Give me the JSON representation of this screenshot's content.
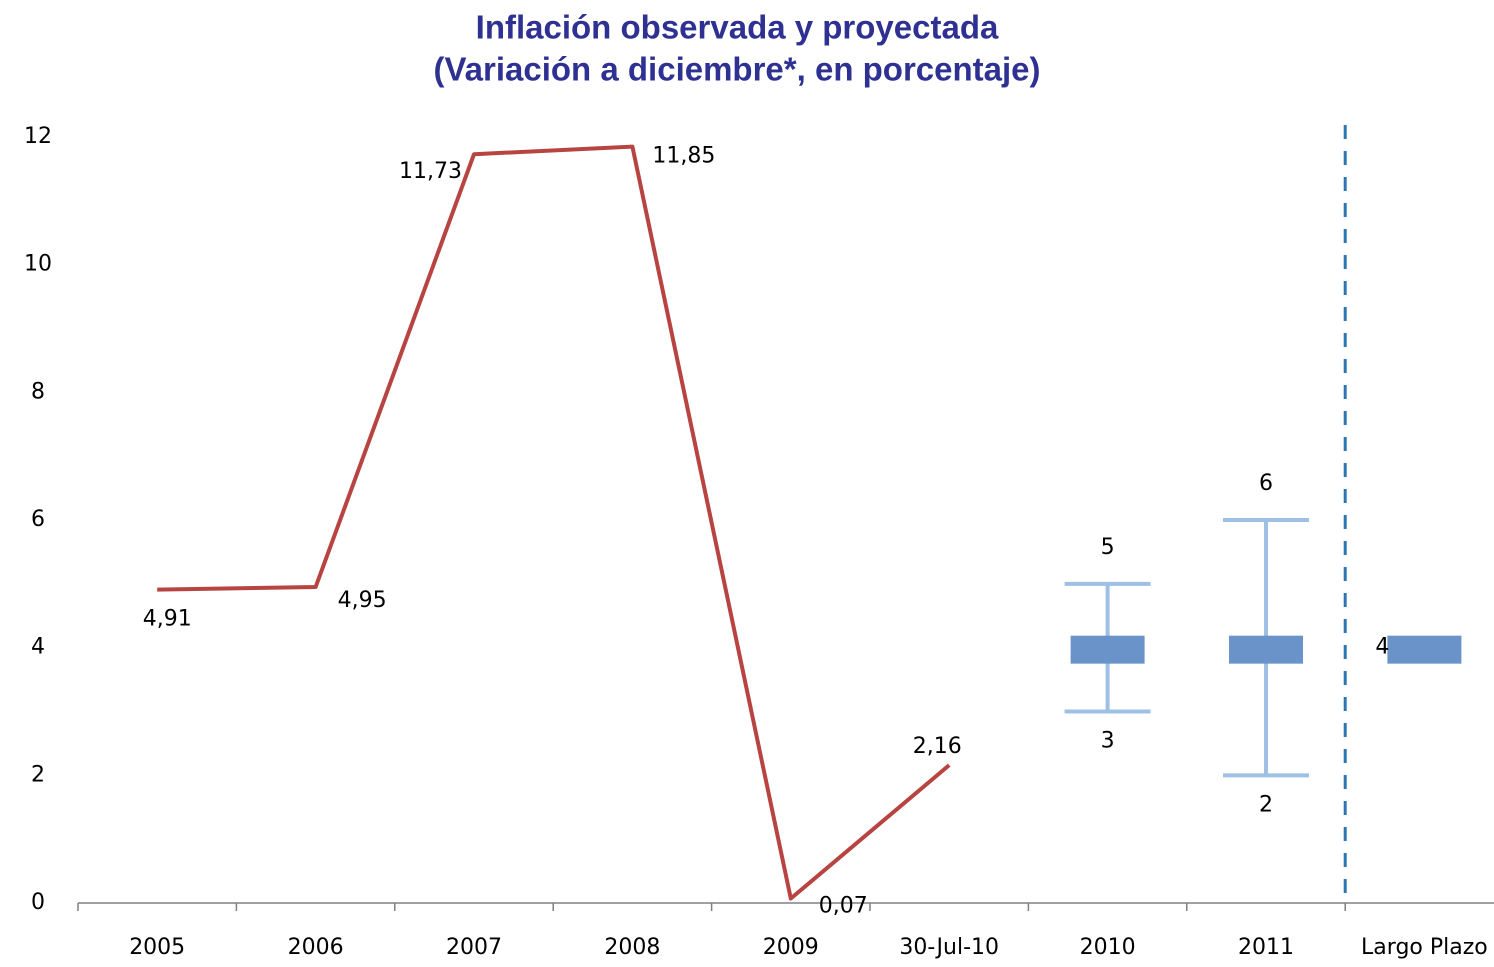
{
  "chart_data": {
    "type": "line",
    "title": "Inflación observada y proyectada",
    "subtitle": "(Variación a diciembre*, en porcentaje)",
    "categories": [
      "2005",
      "2006",
      "2007",
      "2008",
      "2009",
      "30-Jul-10",
      "2010",
      "2011",
      "Largo Plazo"
    ],
    "values": [
      4.91,
      4.95,
      11.73,
      11.85,
      0.07,
      2.16,
      null,
      null,
      null
    ],
    "value_labels": [
      "4,91",
      "4,95",
      "11,73",
      "11,85",
      "0,07",
      "2,16",
      null,
      null,
      null
    ],
    "color": "#b84441",
    "ranges": {
      "low": [
        null,
        null,
        null,
        null,
        null,
        null,
        3,
        2,
        null
      ],
      "high": [
        null,
        null,
        null,
        null,
        null,
        null,
        5,
        6,
        null
      ],
      "color": "#9dc0e4"
    },
    "targets": {
      "values": [
        null,
        null,
        null,
        null,
        null,
        null,
        4,
        4,
        4
      ],
      "color": "#6a94c9"
    },
    "ylim": [
      0,
      12
    ],
    "yticks": [
      0,
      2,
      4,
      6,
      8,
      10,
      12
    ],
    "grid": false
  }
}
